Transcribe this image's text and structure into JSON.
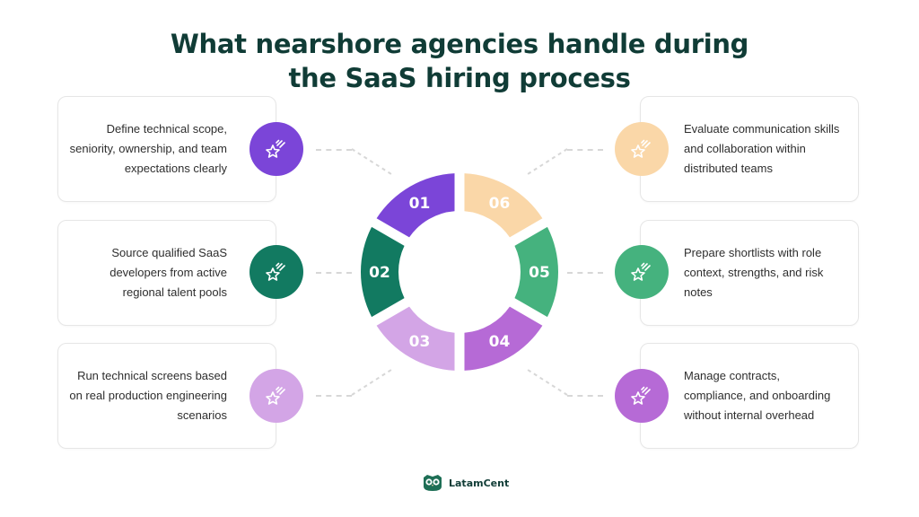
{
  "title": {
    "line1": "What nearshore agencies handle during",
    "line2": "the SaaS hiring process"
  },
  "steps": [
    {
      "number": "01",
      "text": "Define technical scope, seniority, ownership, and team expectations clearly",
      "color": "#7b45d8",
      "text_color": "#ffffff"
    },
    {
      "number": "02",
      "text": "Source qualified SaaS developers from active regional talent pools",
      "color": "#127a61",
      "text_color": "#ffffff"
    },
    {
      "number": "03",
      "text": "Run technical screens based on real production engineering scenarios",
      "color": "#d3a5e6",
      "text_color": "#ffffff"
    },
    {
      "number": "04",
      "text": "Manage contracts, compliance, and onboarding without internal overhead",
      "color": "#b66ad6",
      "text_color": "#ffffff"
    },
    {
      "number": "05",
      "text": "Prepare shortlists with role context, strengths, and risk notes",
      "color": "#45b27e",
      "text_color": "#ffffff"
    },
    {
      "number": "06",
      "text": "Evaluate communication skills and collaboration within distributed teams",
      "color": "#fad7a8",
      "text_color": "#ffffff"
    }
  ],
  "icons": {
    "badge": "shooting-star-icon",
    "logo": "owl-icon"
  },
  "brand": {
    "name": "LatamCent",
    "color": "#1e6f56"
  }
}
